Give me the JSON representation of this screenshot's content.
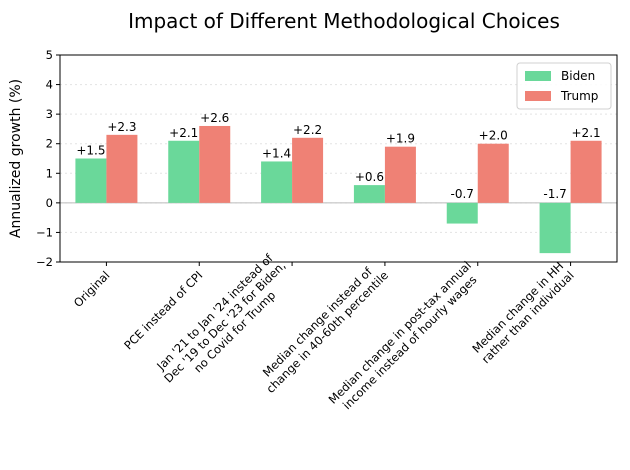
{
  "chart_data": {
    "type": "bar",
    "title": "Impact of Different Methodological Choices",
    "xlabel": "",
    "ylabel": "Annualized growth (%)",
    "ylim": [
      -2,
      5
    ],
    "yticks": [
      -2,
      -1,
      0,
      1,
      2,
      3,
      4,
      5
    ],
    "ytick_labels": [
      "−2",
      "−1",
      "0",
      "1",
      "2",
      "3",
      "4",
      "5"
    ],
    "grid": true,
    "legend_position": "top-right",
    "categories": [
      [
        "Original"
      ],
      [
        "PCE instead of CPI"
      ],
      [
        "Jan '21 to Jan '24 instead of",
        "Dec '19 to Dec '23 for Biden,",
        "no Covid for Trump"
      ],
      [
        "Median change instead of",
        "change in 40-60th percentile"
      ],
      [
        "Median change in post-tax annual",
        "income instead of hourly wages"
      ],
      [
        "Median change in HH",
        "rather than individual"
      ]
    ],
    "series": [
      {
        "name": "Biden",
        "color": "#6ad89a",
        "values": [
          1.5,
          2.1,
          1.4,
          0.6,
          -0.7,
          -1.7
        ],
        "labels": [
          "+1.5",
          "+2.1",
          "+1.4",
          "+0.6",
          "-0.7",
          "-1.7"
        ]
      },
      {
        "name": "Trump",
        "color": "#ef8175",
        "values": [
          2.3,
          2.6,
          2.2,
          1.9,
          2.0,
          2.1
        ],
        "labels": [
          "+2.3",
          "+2.6",
          "+2.2",
          "+1.9",
          "+2.0",
          "+2.1"
        ]
      }
    ]
  }
}
